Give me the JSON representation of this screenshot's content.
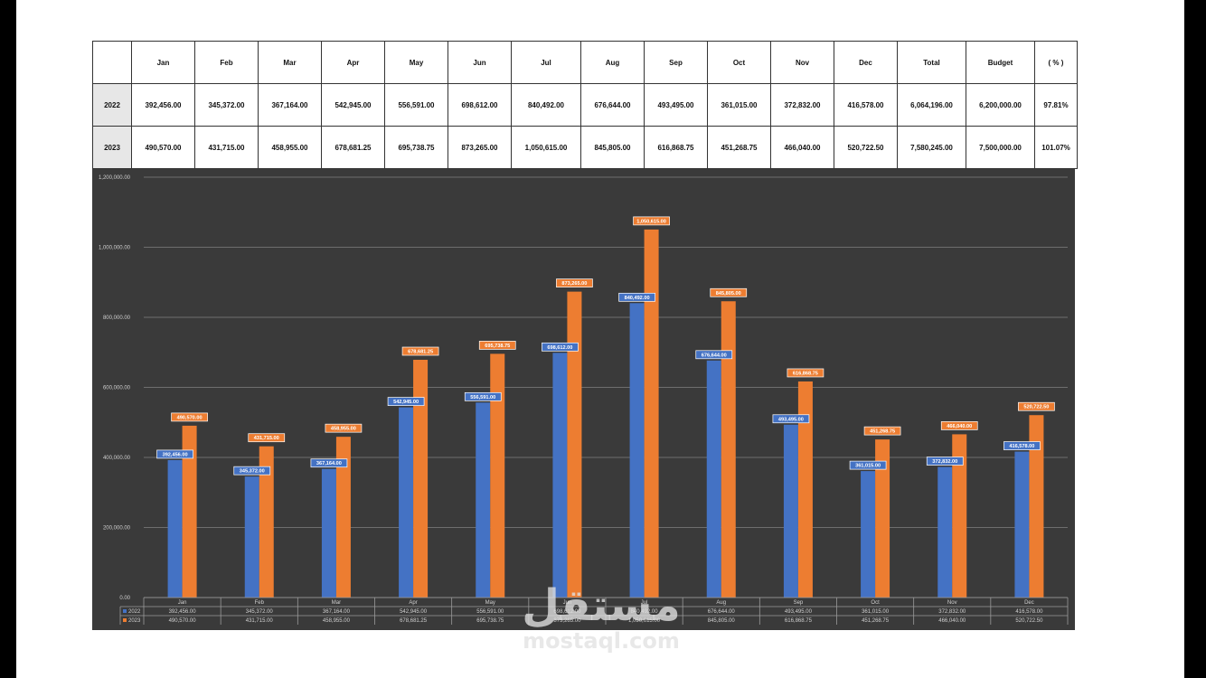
{
  "table": {
    "headers": [
      "Jan",
      "Feb",
      "Mar",
      "Apr",
      "May",
      "Jun",
      "Jul",
      "Aug",
      "Sep",
      "Oct",
      "Nov",
      "Dec",
      "Total",
      "Budget",
      "( % )"
    ],
    "rows": [
      {
        "label": "2022",
        "cells": [
          "392,456.00",
          "345,372.00",
          "367,164.00",
          "542,945.00",
          "556,591.00",
          "698,612.00",
          "840,492.00",
          "676,644.00",
          "493,495.00",
          "361,015.00",
          "372,832.00",
          "416,578.00",
          "6,064,196.00",
          "6,200,000.00",
          "97.81%"
        ]
      },
      {
        "label": "2023",
        "cells": [
          "490,570.00",
          "431,715.00",
          "458,955.00",
          "678,681.25",
          "695,738.75",
          "873,265.00",
          "1,050,615.00",
          "845,805.00",
          "616,868.75",
          "451,268.75",
          "466,040.00",
          "520,722.50",
          "7,580,245.00",
          "7,500,000.00",
          "101.07%"
        ]
      }
    ]
  },
  "chart_data": {
    "type": "bar",
    "categories": [
      "Jan",
      "Feb",
      "Mar",
      "Apr",
      "May",
      "Jun",
      "Jul",
      "Aug",
      "Sep",
      "Oct",
      "Nov",
      "Dec"
    ],
    "series": [
      {
        "name": "2022",
        "color": "#4472c4",
        "values": [
          392456,
          345372,
          367164,
          542945,
          556591,
          698612,
          840492,
          676644,
          493495,
          361015,
          372832,
          416578
        ],
        "labels": [
          "392,456.00",
          "345,372.00",
          "367,164.00",
          "542,945.00",
          "556,591.00",
          "698,612.00",
          "840,492.00",
          "676,644.00",
          "493,495.00",
          "361,015.00",
          "372,832.00",
          "416,578.00"
        ]
      },
      {
        "name": "2023",
        "color": "#ed7d31",
        "values": [
          490570,
          431715,
          458955,
          678681.25,
          695738.75,
          873265,
          1050615,
          845805,
          616868.75,
          451268.75,
          466040,
          520722.5
        ],
        "labels": [
          "490,570.00",
          "431,715.00",
          "458,955.00",
          "678,681.25",
          "695,738.75",
          "873,265.00",
          "1,050,615.00",
          "845,805.00",
          "616,868.75",
          "451,268.75",
          "466,040.00",
          "520,722.50"
        ]
      }
    ],
    "yticks": [
      "0.00",
      "200,000.00",
      "400,000.00",
      "600,000.00",
      "800,000.00",
      "1,000,000.00",
      "1,200,000.00"
    ],
    "ylim": [
      0,
      1200000
    ],
    "grid": true,
    "legend": "data-table-below"
  },
  "watermark": {
    "arabic": "مستقل",
    "latin": "mostaql.com"
  }
}
